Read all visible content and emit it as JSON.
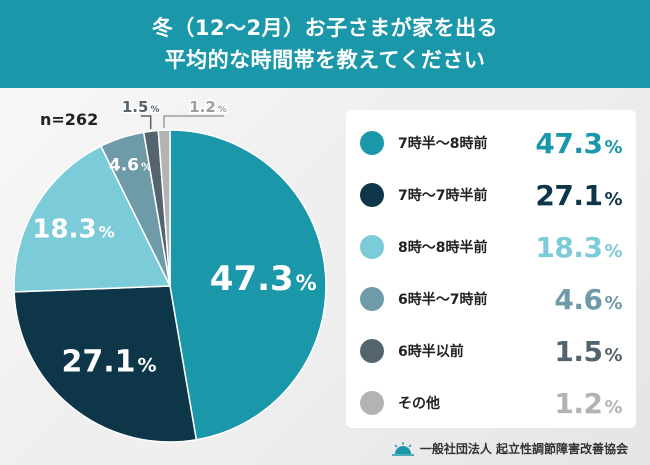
{
  "header": {
    "line1": "冬（12〜2月）お子さまが家を出る",
    "line2": "平均的な時間帯を教えてください"
  },
  "n_label": "n=262",
  "colors": {
    "header_bg": "#1a97a8",
    "series": [
      "#1a97a8",
      "#0d3749",
      "#7ccbd8",
      "#6f9aa8",
      "#54646e",
      "#b3b3b3"
    ]
  },
  "chart_data": {
    "type": "pie",
    "title": "冬（12〜2月）お子さまが家を出る平均的な時間帯を教えてください",
    "categories": [
      "7時半〜8時前",
      "7時〜7時半前",
      "8時〜8時半前",
      "6時半〜7時前",
      "6時半以前",
      "その他"
    ],
    "values": [
      47.3,
      27.1,
      18.3,
      4.6,
      1.5,
      1.2
    ],
    "unit": "%",
    "legend_position": "right"
  },
  "legend": [
    {
      "label": "7時半〜8時前",
      "value": "47.3",
      "pct": "%",
      "color": "#1a97a8"
    },
    {
      "label": "7時〜7時半前",
      "value": "27.1",
      "pct": "%",
      "color": "#0d3749"
    },
    {
      "label": "8時〜8時半前",
      "value": "18.3",
      "pct": "%",
      "color": "#7ccbd8"
    },
    {
      "label": "6時半〜7時前",
      "value": "4.6",
      "pct": "%",
      "color": "#6f9aa8"
    },
    {
      "label": "6時半以前",
      "value": "1.5",
      "pct": "%",
      "color": "#54646e"
    },
    {
      "label": "その他",
      "value": "1.2",
      "pct": "%",
      "color": "#b3b3b3"
    }
  ],
  "footer": {
    "org": "一般社団法人 起立性調節障害改善協会"
  }
}
